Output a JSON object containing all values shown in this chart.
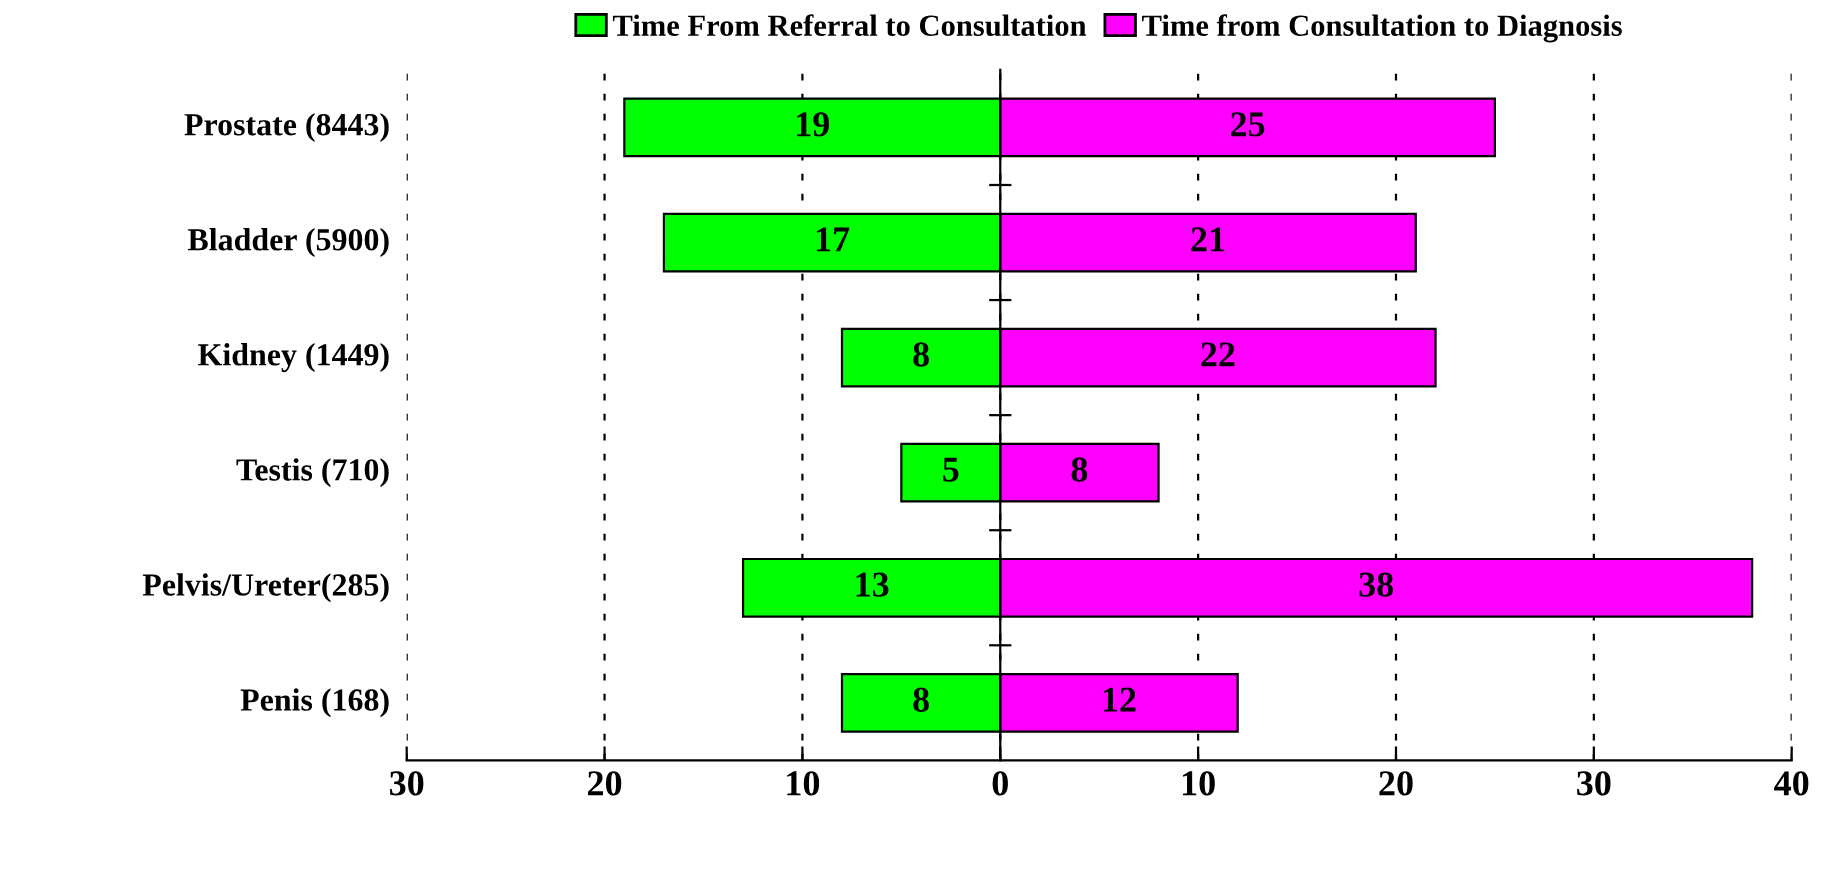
{
  "chart_data": {
    "type": "bar",
    "orientation": "horizontal",
    "categories": [
      "Prostate (8443)",
      "Bladder (5900)",
      "Kidney (1449)",
      "Testis (710)",
      "Pelvis/Ureter(285)",
      "Penis (168)"
    ],
    "series": [
      {
        "name": "Time From Referral to Consultation",
        "color": "#00ff00",
        "base": [
          -19,
          -17,
          -8,
          -5,
          -13,
          -8
        ],
        "values": [
          19,
          17,
          8,
          5,
          13,
          8
        ],
        "value_labels": [
          "19",
          "17",
          "8",
          "5",
          "13",
          "8"
        ]
      },
      {
        "name": "Time from Consultation to Diagnosis",
        "color": "#ff00ff",
        "values": [
          25,
          21,
          22,
          8,
          38,
          12
        ],
        "value_labels": [
          "25",
          "21",
          "22",
          "8",
          "38",
          "12"
        ]
      }
    ],
    "xlim": [
      -30,
      40
    ],
    "xticks": [
      {
        "value": -30,
        "label": "30"
      },
      {
        "value": -20,
        "label": "20"
      },
      {
        "value": -10,
        "label": "10"
      },
      0,
      10,
      20,
      30,
      40
    ],
    "grid": "x",
    "legend": "top"
  }
}
